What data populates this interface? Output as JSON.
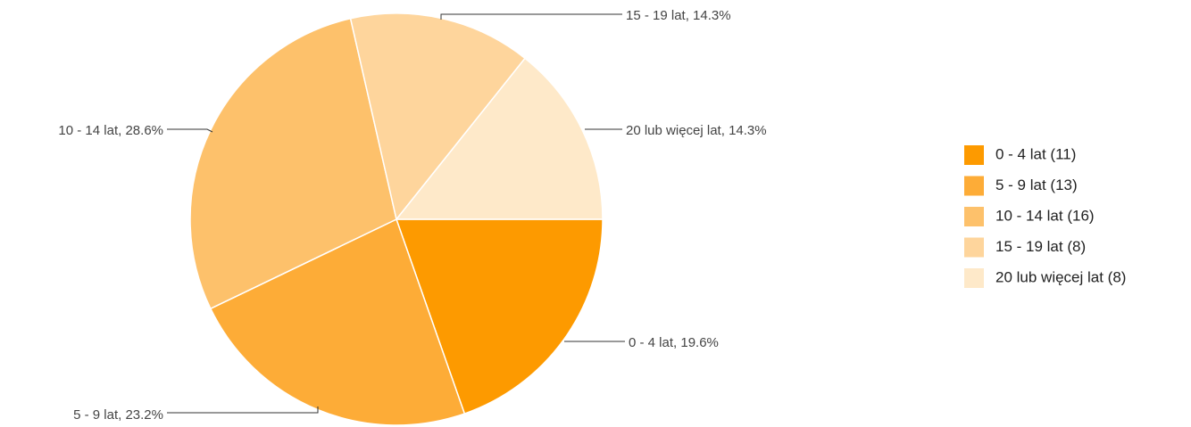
{
  "chart_data": {
    "type": "pie",
    "values": [
      11,
      13,
      16,
      8,
      8
    ],
    "slice_labels": [
      "0 - 4 lat, 19.6%",
      "5 - 9 lat, 23.2%",
      "10 - 14 lat, 28.6%",
      "15 - 19 lat, 14.3%",
      "20 lub więcej lat, 14.3%"
    ],
    "legend_labels": [
      "0 - 4 lat (11)",
      "5 - 9 lat (13)",
      "10 - 14 lat (16)",
      "15 - 19 lat (8)",
      "20 lub więcej lat (8)"
    ],
    "colors": [
      "#fd9a00",
      "#fdac37",
      "#fdc16b",
      "#fed59c",
      "#fee9c9"
    ],
    "legend": "right"
  }
}
